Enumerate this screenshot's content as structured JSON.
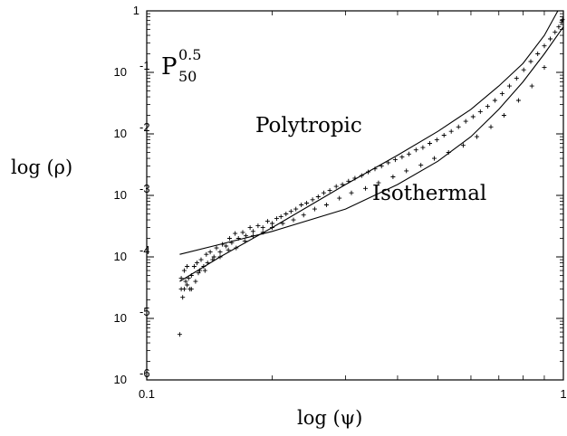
{
  "chart_data": {
    "type": "scatter",
    "xscale": "log",
    "yscale": "log",
    "xlim": [
      0.1,
      1
    ],
    "ylim": [
      1e-06,
      1
    ],
    "xlabel": "log (ψ)",
    "ylabel": "log (ρ)",
    "x_ticks": [
      {
        "value": 0.1,
        "label": "0.1"
      },
      {
        "value": 1,
        "label": "1"
      }
    ],
    "y_ticks": [
      {
        "value": 1,
        "label": "1",
        "exp": ""
      },
      {
        "value": 0.1,
        "label": "10",
        "exp": "-1"
      },
      {
        "value": 0.01,
        "label": "10",
        "exp": "-2"
      },
      {
        "value": 0.001,
        "label": "10",
        "exp": "-3"
      },
      {
        "value": 0.0001,
        "label": "10",
        "exp": "-4"
      },
      {
        "value": 1e-05,
        "label": "10",
        "exp": "-5"
      },
      {
        "value": 1e-06,
        "label": "10",
        "exp": "-6"
      }
    ],
    "panel_label": {
      "main": "P",
      "sup": "0.5",
      "sub": "50"
    },
    "annotations": [
      "Polytropic",
      "Isothermal"
    ],
    "grid": false,
    "series": [
      {
        "marker": "+",
        "x": [
          0.12,
          0.121,
          0.121,
          0.122,
          0.123,
          0.123,
          0.124,
          0.125,
          0.125,
          0.126,
          0.127,
          0.128,
          0.13,
          0.131,
          0.132,
          0.134,
          0.135,
          0.137,
          0.139,
          0.14,
          0.142,
          0.145,
          0.147,
          0.15,
          0.152,
          0.155,
          0.158,
          0.16,
          0.163,
          0.166,
          0.17,
          0.173,
          0.177,
          0.18,
          0.185,
          0.19,
          0.195,
          0.2,
          0.205,
          0.21,
          0.216,
          0.222,
          0.228,
          0.235,
          0.242,
          0.25,
          0.258,
          0.266,
          0.275,
          0.285,
          0.295,
          0.305,
          0.316,
          0.328,
          0.34,
          0.353,
          0.366,
          0.38,
          0.395,
          0.41,
          0.426,
          0.443,
          0.46,
          0.478,
          0.497,
          0.517,
          0.538,
          0.56,
          0.583,
          0.607,
          0.632,
          0.658,
          0.685,
          0.713,
          0.742,
          0.772,
          0.803,
          0.835,
          0.868,
          0.9,
          0.93,
          0.955,
          0.975,
          0.99,
          0.995,
          0.128,
          0.133,
          0.138,
          0.144,
          0.15,
          0.157,
          0.164,
          0.172,
          0.18,
          0.19,
          0.2,
          0.212,
          0.225,
          0.238,
          0.253,
          0.27,
          0.29,
          0.31,
          0.335,
          0.36,
          0.39,
          0.42,
          0.455,
          0.49,
          0.53,
          0.575,
          0.62,
          0.67,
          0.72,
          0.78,
          0.84,
          0.9
        ],
        "y": [
          5.5e-06,
          3e-05,
          4.5e-05,
          2.2e-05,
          6e-05,
          3e-05,
          4e-05,
          3.5e-05,
          7e-05,
          4.5e-05,
          3e-05,
          5e-05,
          7e-05,
          4e-05,
          8e-05,
          6e-05,
          9e-05,
          7e-05,
          0.00011,
          8e-05,
          0.00012,
          0.0001,
          0.00014,
          0.00012,
          0.00016,
          0.00015,
          0.0002,
          0.00017,
          0.00024,
          0.0002,
          0.00025,
          0.00022,
          0.0003,
          0.00026,
          0.00032,
          0.0003,
          0.00038,
          0.00035,
          0.00042,
          0.00045,
          0.0005,
          0.00055,
          0.0006,
          0.0007,
          0.00075,
          0.00085,
          0.00095,
          0.0011,
          0.0012,
          0.0014,
          0.0015,
          0.0017,
          0.0019,
          0.0021,
          0.0024,
          0.0027,
          0.003,
          0.0034,
          0.0038,
          0.0042,
          0.0047,
          0.0055,
          0.006,
          0.007,
          0.008,
          0.0095,
          0.011,
          0.013,
          0.016,
          0.019,
          0.023,
          0.028,
          0.035,
          0.045,
          0.06,
          0.08,
          0.11,
          0.15,
          0.2,
          0.27,
          0.35,
          0.45,
          0.55,
          0.65,
          0.72,
          3e-05,
          5.5e-05,
          6e-05,
          9e-05,
          0.0001,
          0.00013,
          0.00014,
          0.00018,
          0.00022,
          0.00025,
          0.0003,
          0.00035,
          0.0004,
          0.00048,
          0.0006,
          0.0007,
          0.0009,
          0.0011,
          0.0013,
          0.0016,
          0.002,
          0.0025,
          0.0031,
          0.004,
          0.005,
          0.0065,
          0.009,
          0.013,
          0.02,
          0.035,
          0.06,
          0.12
        ]
      },
      {
        "name": "Polytropic",
        "style": "line",
        "x": [
          0.12,
          0.15,
          0.2,
          0.3,
          0.4,
          0.5,
          0.6,
          0.7,
          0.8,
          0.9,
          0.97
        ],
        "y": [
          4e-05,
          0.0001,
          0.0003,
          0.0015,
          0.0045,
          0.011,
          0.025,
          0.06,
          0.14,
          0.4,
          1.0
        ]
      },
      {
        "name": "Isothermal",
        "style": "line",
        "x": [
          0.12,
          0.15,
          0.2,
          0.3,
          0.4,
          0.5,
          0.6,
          0.7,
          0.8,
          0.9,
          1.0
        ],
        "y": [
          0.00011,
          0.00016,
          0.00026,
          0.0006,
          0.0015,
          0.0036,
          0.009,
          0.025,
          0.07,
          0.2,
          0.55
        ]
      }
    ]
  }
}
